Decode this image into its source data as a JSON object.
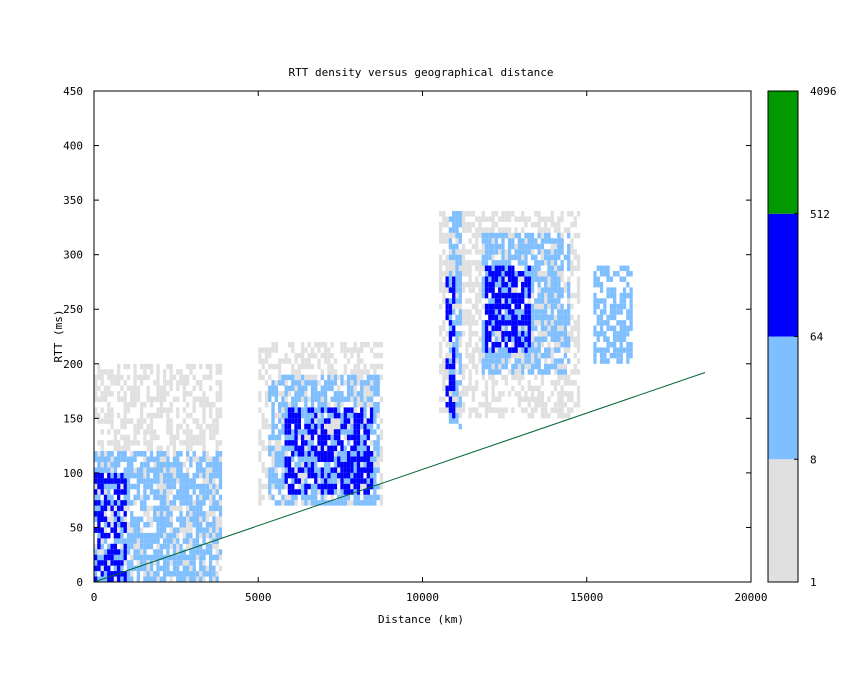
{
  "chart_data": {
    "type": "heatmap",
    "title": "RTT density versus geographical distance",
    "xlabel": "Distance (km)",
    "ylabel": "RTT (ms)",
    "xlim": [
      0,
      20000
    ],
    "ylim": [
      0,
      450
    ],
    "x_ticks": [
      0,
      5000,
      10000,
      15000,
      20000
    ],
    "y_ticks": [
      0,
      50,
      100,
      150,
      200,
      250,
      300,
      350,
      400,
      450
    ],
    "grid": false,
    "colorbar": {
      "scale": "log",
      "position": "right",
      "tick_labels": [
        "1",
        "8",
        "64",
        "512",
        "4096"
      ],
      "bins": [
        {
          "from": 1,
          "to": 8,
          "color": "#e0e0e0"
        },
        {
          "from": 8,
          "to": 64,
          "color": "#80bfff"
        },
        {
          "from": 64,
          "to": 512,
          "color": "#0000ff"
        },
        {
          "from": 512,
          "to": 4096,
          "color": "#009900"
        }
      ]
    },
    "reference_line": {
      "color": "#006633",
      "points": [
        [
          0,
          0
        ],
        [
          18600,
          192
        ]
      ]
    },
    "density_regions": [
      {
        "x": [
          0,
          3900
        ],
        "y": [
          0,
          200
        ],
        "level": 1
      },
      {
        "x": [
          5000,
          8800
        ],
        "y": [
          70,
          220
        ],
        "level": 1
      },
      {
        "x": [
          10500,
          14800
        ],
        "y": [
          150,
          340
        ],
        "level": 1
      },
      {
        "x": [
          0,
          3900
        ],
        "y": [
          0,
          120
        ],
        "level": 2
      },
      {
        "x": [
          5300,
          8700
        ],
        "y": [
          70,
          190
        ],
        "level": 2
      },
      {
        "x": [
          10800,
          11200
        ],
        "y": [
          140,
          340
        ],
        "level": 2
      },
      {
        "x": [
          11800,
          14500
        ],
        "y": [
          190,
          320
        ],
        "level": 2
      },
      {
        "x": [
          15200,
          16400
        ],
        "y": [
          200,
          290
        ],
        "level": 2
      },
      {
        "x": [
          0,
          1000
        ],
        "y": [
          0,
          100
        ],
        "level": 3
      },
      {
        "x": [
          5800,
          8500
        ],
        "y": [
          80,
          160
        ],
        "level": 3
      },
      {
        "x": [
          10700,
          11000
        ],
        "y": [
          150,
          290
        ],
        "level": 3
      },
      {
        "x": [
          11900,
          13300
        ],
        "y": [
          210,
          290
        ],
        "level": 3
      }
    ]
  }
}
